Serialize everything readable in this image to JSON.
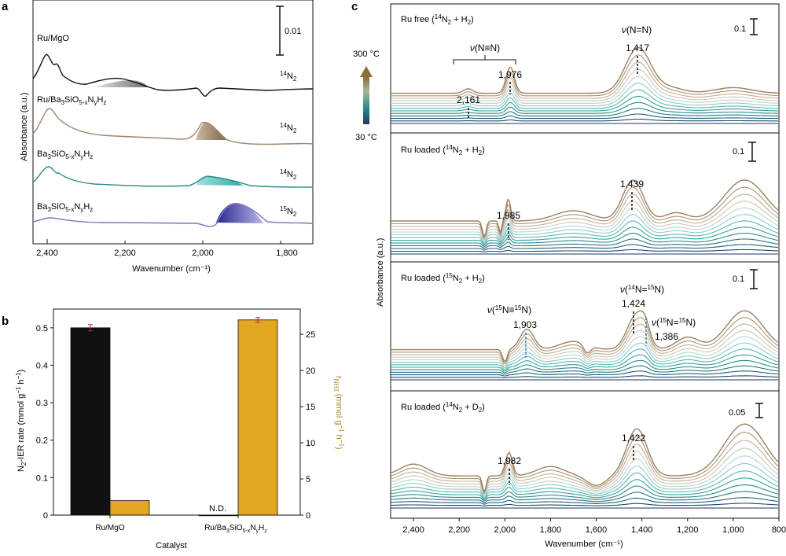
{
  "panels": {
    "a": "a",
    "b": "b",
    "c": "c"
  },
  "colors": {
    "black": "#111111",
    "brown": "#a0866a",
    "brown_fill": "#8a6f52",
    "teal": "#2a8a86",
    "teal_fill": "#47c0bd",
    "purple": "#7c76b8",
    "purple_fill": "#2f2f9e",
    "navy": "#1d3a62",
    "gold": "#e2a623",
    "gold_text": "#a88a2a"
  },
  "panel_a": {
    "scale_bar": "0.01",
    "y_label": "Absorbance (a.u.)",
    "x_label": "Wavenumber (cm⁻¹)",
    "x_ticks": [
      "2,400",
      "2,200",
      "2,000",
      "1,800"
    ],
    "traces": [
      {
        "label": "Ru/MgO",
        "gas": "14N2",
        "gas_sup": "14",
        "gas_base": "N",
        "gas_sub": "2"
      },
      {
        "label": "Ru/Ba3SiO5-xNyHz",
        "gas": "14N2",
        "gas_sup": "14",
        "gas_base": "N",
        "gas_sub": "2"
      },
      {
        "label": "Ba3SiO5-xNyHz",
        "gas": "14N2",
        "gas_sup": "14",
        "gas_base": "N",
        "gas_sub": "2"
      },
      {
        "label": "Ba3SiO5-xNyHz",
        "gas": "15N2",
        "gas_sup": "15",
        "gas_base": "N",
        "gas_sub": "2"
      }
    ]
  },
  "chart_data": [
    {
      "panel": "b",
      "type": "bar",
      "categories": [
        "Ru/MgO",
        "Ru/Ba3SiO5-xNyHz"
      ],
      "xlabel": "Catalyst",
      "ylabel": "N2-IER rate (mmol g⁻¹ h⁻¹)",
      "ylabel_right": "rNH3 (mmol g⁻¹ h⁻¹)",
      "ylim": [
        0,
        0.55
      ],
      "ylim_right": [
        0,
        28.5
      ],
      "yticks": [
        "0",
        "0.1",
        "0.2",
        "0.3",
        "0.4",
        "0.5"
      ],
      "yticks_right": [
        "0",
        "5",
        "10",
        "15",
        "20",
        "25"
      ],
      "annotation": "N.D.",
      "series": [
        {
          "name": "N2-IER rate",
          "axis": "left",
          "values": [
            0.5,
            0.0
          ]
        },
        {
          "name": "rNH3",
          "axis": "right",
          "values": [
            2.0,
            27.0
          ]
        }
      ]
    },
    {
      "panel": "c",
      "type": "line",
      "xlabel": "Wavenumber (cm⁻¹)",
      "ylabel": "Absorbance (a.u.)",
      "xlim": [
        2500,
        800
      ],
      "xticks": [
        "2,400",
        "2,200",
        "2,000",
        "1,800",
        "1,600",
        "1,400",
        "1,200",
        "1,000",
        "800"
      ],
      "temperature_range": [
        "30 °C",
        "300 °C"
      ],
      "subpanels": [
        {
          "title": "Ru free (14N2 + H2)",
          "scale": "0.1",
          "peaks": [
            {
              "label": "2,161",
              "x": 2161
            },
            {
              "label": "1,976",
              "x": 1976
            },
            {
              "label": "1,417",
              "x": 1417
            }
          ],
          "assignments": [
            {
              "label": "ν(N≡N)",
              "x_range": [
                2300,
                1960
              ]
            },
            {
              "label": "ν(N=N)",
              "x": 1417
            }
          ]
        },
        {
          "title": "Ru loaded (14N2 + H2)",
          "scale": "0.1",
          "peaks": [
            {
              "label": "1,985",
              "x": 1985
            },
            {
              "label": "1,439",
              "x": 1439
            }
          ]
        },
        {
          "title": "Ru loaded (15N2 + H2)",
          "scale": "0.1",
          "peaks": [
            {
              "label": "1,903",
              "x": 1903,
              "assignment": "ν(15N≡15N)"
            },
            {
              "label": "1,424",
              "x": 1424,
              "assignment": "ν(14N=15N)"
            },
            {
              "label": "1,386",
              "x": 1386,
              "assignment": "ν(15N=15N)"
            }
          ]
        },
        {
          "title": "Ru loaded (14N2 + D2)",
          "scale": "0.05",
          "peaks": [
            {
              "label": "1,982",
              "x": 1982
            },
            {
              "label": "1,422",
              "x": 1422
            }
          ]
        }
      ]
    }
  ],
  "texts": {
    "c1_title_pre": "Ru free (",
    "c1_title_post": " + H",
    "c2_title_pre": "Ru loaded (",
    "c4_title_post": " + D",
    "nu": "ν",
    "nn_triple": "(N≡N)",
    "nn_double": "(N=N)",
    "temp_hi": "300 °C",
    "temp_lo": "30 °C"
  }
}
